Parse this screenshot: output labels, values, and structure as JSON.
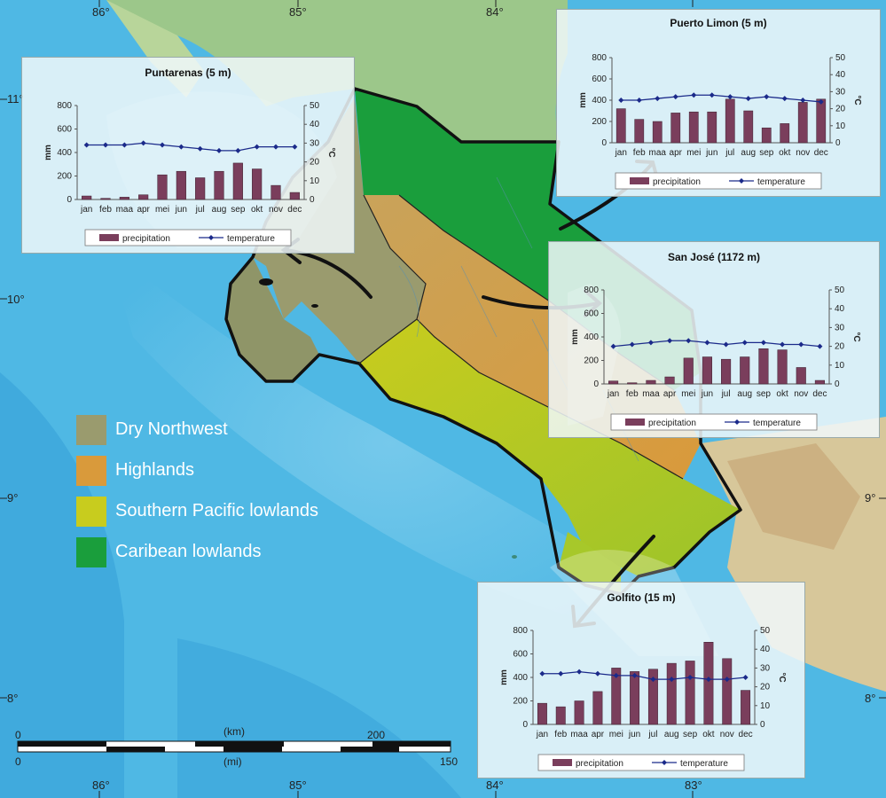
{
  "graticule": {
    "lon_labels": [
      "86°",
      "85°",
      "84°",
      "83°"
    ],
    "lat_labels": [
      "11°",
      "10°",
      "9°",
      "8°"
    ]
  },
  "legend": [
    {
      "label": "Dry Northwest",
      "color": "#9a9b6e"
    },
    {
      "label": "Highlands",
      "color": "#d99a3b"
    },
    {
      "label": "Southern Pacific lowlands",
      "color": "#c8cc1e"
    },
    {
      "label": "Caribean lowlands",
      "color": "#1a9e3c"
    }
  ],
  "scale_bar": {
    "km_unit": "(km)",
    "km_zero": "0",
    "km_max": "200",
    "mi_unit": "(mi)",
    "mi_zero": "0",
    "mi_max": "150"
  },
  "climate_charts": [
    {
      "id": "puntarenas",
      "title": "Puntarenas (5 m)",
      "months": [
        "jan",
        "feb",
        "maa",
        "apr",
        "mei",
        "jun",
        "jul",
        "aug",
        "sep",
        "okt",
        "nov",
        "dec"
      ],
      "precipitation_mm": [
        30,
        10,
        20,
        40,
        210,
        240,
        185,
        240,
        310,
        260,
        120,
        60
      ],
      "temperature_c": [
        29,
        29,
        29,
        30,
        29,
        28,
        27,
        26,
        26,
        28,
        28,
        28
      ],
      "ylim_mm": [
        0,
        800
      ],
      "mm_ticks": [
        "0",
        "200",
        "400",
        "600",
        "800"
      ],
      "ylim_c": [
        0,
        50
      ],
      "c_ticks": [
        "0",
        "10",
        "20",
        "30",
        "40",
        "50"
      ],
      "ylabel_left": "mm",
      "ylabel_right": "°C",
      "legend_precip": "precipitation",
      "legend_temp": "temperature"
    },
    {
      "id": "puerto-limon",
      "title": "Puerto Limon (5 m)",
      "months": [
        "jan",
        "feb",
        "maa",
        "apr",
        "mei",
        "jun",
        "jul",
        "aug",
        "sep",
        "okt",
        "nov",
        "dec"
      ],
      "precipitation_mm": [
        320,
        220,
        200,
        280,
        290,
        290,
        410,
        300,
        140,
        180,
        380,
        410
      ],
      "temperature_c": [
        25,
        25,
        26,
        27,
        28,
        28,
        27,
        26,
        27,
        26,
        25,
        24
      ],
      "ylim_mm": [
        0,
        800
      ],
      "mm_ticks": [
        "0",
        "200",
        "400",
        "600",
        "800"
      ],
      "ylim_c": [
        0,
        50
      ],
      "c_ticks": [
        "0",
        "10",
        "20",
        "30",
        "40",
        "50"
      ],
      "ylabel_left": "mm",
      "ylabel_right": "°C",
      "legend_precip": "precipitation",
      "legend_temp": "temperature"
    },
    {
      "id": "san-jose",
      "title": "San José (1172 m)",
      "months": [
        "jan",
        "feb",
        "maa",
        "apr",
        "mei",
        "jun",
        "jul",
        "aug",
        "sep",
        "okt",
        "nov",
        "dec"
      ],
      "precipitation_mm": [
        25,
        10,
        30,
        60,
        220,
        230,
        210,
        230,
        300,
        290,
        140,
        30
      ],
      "temperature_c": [
        20,
        21,
        22,
        23,
        23,
        22,
        21,
        22,
        22,
        21,
        21,
        20
      ],
      "ylim_mm": [
        0,
        800
      ],
      "mm_ticks": [
        "0",
        "200",
        "400",
        "600",
        "800"
      ],
      "ylim_c": [
        0,
        50
      ],
      "c_ticks": [
        "0",
        "10",
        "20",
        "30",
        "40",
        "50"
      ],
      "ylabel_left": "mm",
      "ylabel_right": "°C",
      "legend_precip": "precipitation",
      "legend_temp": "temperature"
    },
    {
      "id": "golfito",
      "title": "Golfito (15 m)",
      "months": [
        "jan",
        "feb",
        "maa",
        "apr",
        "mei",
        "jun",
        "jul",
        "aug",
        "sep",
        "okt",
        "nov",
        "dec"
      ],
      "precipitation_mm": [
        180,
        150,
        200,
        280,
        480,
        450,
        470,
        520,
        540,
        700,
        560,
        290
      ],
      "temperature_c": [
        27,
        27,
        28,
        27,
        26,
        26,
        24,
        24,
        25,
        24,
        24,
        25
      ],
      "ylim_mm": [
        0,
        800
      ],
      "mm_ticks": [
        "0",
        "200",
        "400",
        "600",
        "800"
      ],
      "ylim_c": [
        0,
        50
      ],
      "c_ticks": [
        "0",
        "10",
        "20",
        "30",
        "40",
        "50"
      ],
      "ylabel_left": "mm",
      "ylabel_right": "°C",
      "legend_precip": "precipitation",
      "legend_temp": "temperature"
    }
  ],
  "colors": {
    "sea": "#4fb8e4",
    "deep_sea": "#2b8fcd",
    "land_nicaragua": "#9cc78a",
    "land_panama": "#d7c79a",
    "bar_fill": "#7a3e5c",
    "temp_line": "#1b2a8a"
  }
}
